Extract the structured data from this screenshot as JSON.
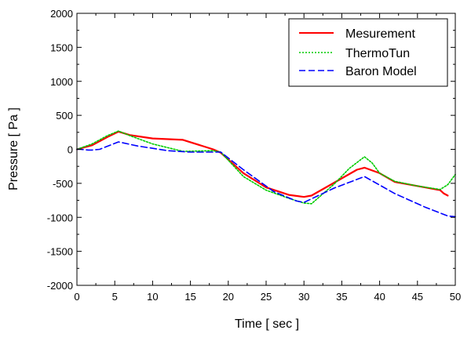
{
  "chart_data": {
    "type": "line",
    "xlabel": "Time [ sec ]",
    "ylabel": "Pressure [ Pa ]",
    "xlim": [
      0,
      50
    ],
    "ylim": [
      -2000,
      2000
    ],
    "xticks": [
      "0",
      "5",
      "10",
      "15",
      "20",
      "25",
      "30",
      "35",
      "40",
      "45",
      "50"
    ],
    "yticks": [
      "2000",
      "1500",
      "1000",
      "500",
      "0",
      "-500",
      "-1000",
      "-1500",
      "-2000"
    ],
    "legend_position": "top-right",
    "grid": false,
    "series": [
      {
        "name": "Mesurement",
        "color": "#ff0000",
        "style": "solid",
        "x": [
          0,
          2,
          4,
          5.5,
          7,
          10,
          14,
          18,
          19,
          22,
          25,
          28,
          30,
          31,
          34,
          37,
          38,
          40,
          42,
          45,
          48,
          48.5,
          49
        ],
        "y": [
          0,
          60,
          180,
          260,
          210,
          160,
          140,
          0,
          -50,
          -350,
          -560,
          -670,
          -700,
          -680,
          -490,
          -300,
          -270,
          -350,
          -480,
          -540,
          -600,
          -650,
          -680
        ]
      },
      {
        "name": "ThermoTun",
        "color": "#00cc00",
        "style": "dotted",
        "x": [
          0,
          2,
          4,
          5.5,
          7,
          10,
          14,
          18,
          19,
          22,
          25,
          28,
          30,
          31,
          34,
          36,
          38,
          39,
          40,
          42,
          45,
          48,
          49,
          50
        ],
        "y": [
          0,
          80,
          200,
          270,
          200,
          80,
          -30,
          -20,
          -40,
          -400,
          -600,
          -720,
          -790,
          -800,
          -510,
          -280,
          -110,
          -200,
          -350,
          -470,
          -540,
          -590,
          -520,
          -370
        ]
      },
      {
        "name": "Baron Model",
        "color": "#0000ff",
        "style": "dashed",
        "x": [
          0,
          0.5,
          1.5,
          2,
          3,
          5.5,
          8,
          12,
          15,
          19,
          22,
          26,
          29,
          30,
          34,
          38,
          42,
          46,
          49,
          50
        ],
        "y": [
          0,
          0,
          -10,
          -10,
          0,
          110,
          50,
          -20,
          -40,
          -40,
          -300,
          -620,
          -760,
          -780,
          -570,
          -400,
          -650,
          -850,
          -980,
          -990
        ]
      }
    ]
  }
}
